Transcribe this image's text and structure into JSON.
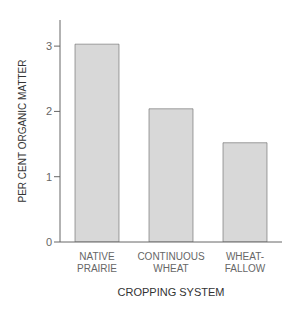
{
  "chart_data": {
    "type": "bar",
    "categories": [
      "NATIVE\nPRAIRIE",
      "CONTINUOUS\nWHEAT",
      "WHEAT-\nFALLOW"
    ],
    "values": [
      3.03,
      2.04,
      1.52
    ],
    "color": "#d8d8d8",
    "xlabel": "CROPPING SYSTEM",
    "ylabel": "PER CENT ORGANIC MATTER",
    "ylim": [
      0,
      3.4
    ],
    "yticks": [
      0,
      1,
      2,
      3
    ],
    "grid": false
  }
}
